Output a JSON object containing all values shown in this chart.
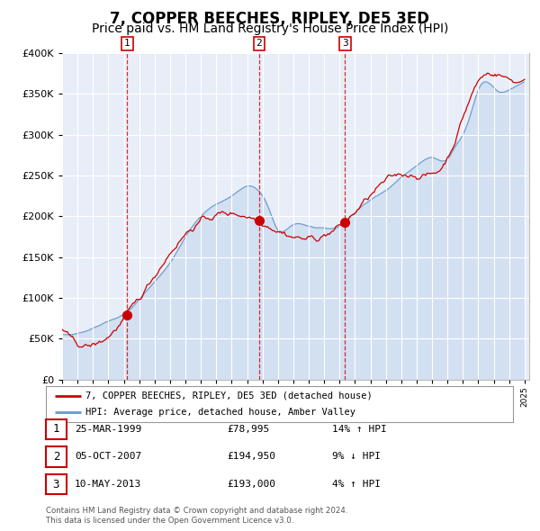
{
  "title": "7, COPPER BEECHES, RIPLEY, DE5 3ED",
  "subtitle": "Price paid vs. HM Land Registry's House Price Index (HPI)",
  "title_fontsize": 12,
  "subtitle_fontsize": 10,
  "background_color": "#ffffff",
  "plot_background": "#e8eef8",
  "grid_color": "#ffffff",
  "hpi_color": "#6699cc",
  "hpi_fill_color": "#c5d8ee",
  "price_color": "#cc0000",
  "sale_marker_color": "#cc0000",
  "ylim": [
    0,
    400000
  ],
  "yticks": [
    0,
    50000,
    100000,
    150000,
    200000,
    250000,
    300000,
    350000,
    400000
  ],
  "legend_label_price": "7, COPPER BEECHES, RIPLEY, DE5 3ED (detached house)",
  "legend_label_hpi": "HPI: Average price, detached house, Amber Valley",
  "sale_points": [
    {
      "label": "1",
      "date": "25-MAR-1999",
      "price": 78995,
      "x": 1999.23,
      "hpi_pct": "14% ↑ HPI"
    },
    {
      "label": "2",
      "date": "05-OCT-2007",
      "price": 194950,
      "x": 2007.77,
      "hpi_pct": "9% ↓ HPI"
    },
    {
      "label": "3",
      "date": "10-MAY-2013",
      "price": 193000,
      "x": 2013.36,
      "hpi_pct": "4% ↑ HPI"
    }
  ],
  "footer_line1": "Contains HM Land Registry data © Crown copyright and database right 2024.",
  "footer_line2": "This data is licensed under the Open Government Licence v3.0."
}
